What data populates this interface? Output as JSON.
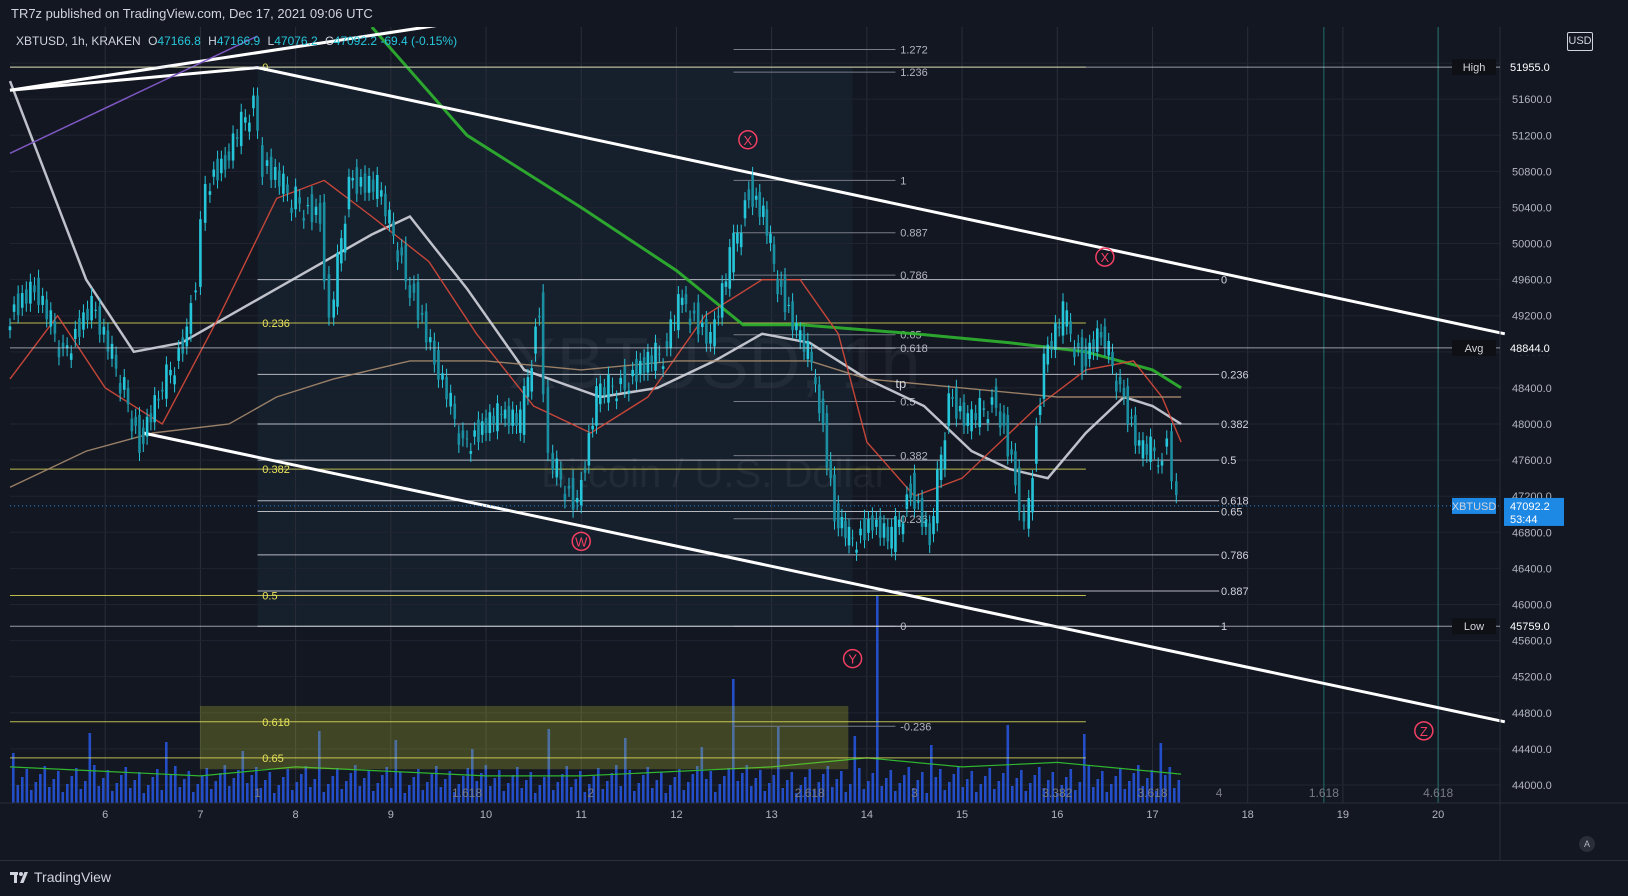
{
  "header": {
    "published_by": "TR7z published on TradingView.com, Dec 17, 2021 09:06 UTC"
  },
  "legend": {
    "symbol": "XBTUSD, 1h, KRAKEN",
    "o_label": "O",
    "o": "47166.8",
    "h_label": "H",
    "h": "47166.9",
    "l_label": "L",
    "l": "47076.2",
    "c_label": "C",
    "c": "47092.2",
    "change": "-69.4 (-0.15%)"
  },
  "currency_button": "USD",
  "footer": {
    "brand": "TradingView",
    "auto_label": "A"
  },
  "colors": {
    "background": "#131722",
    "candle": "#26c6da",
    "fib_yellow": "#e8e35a",
    "ma_green": "#2fb52f",
    "ma_white": "#d1d4dc",
    "ma_red": "#d84a3b",
    "ma_tan": "#a78b6e",
    "volume": "#2962ff",
    "wave_label": "#f23f63"
  },
  "chart_data": {
    "type": "candlestick",
    "symbol": "XBTUSD",
    "timeframe": "1h",
    "exchange": "KRAKEN",
    "watermark": {
      "symbol": "XBTUSD, 1h",
      "name": "Bitcoin / U.S. Dollar"
    },
    "x_ticks": [
      "6",
      "7",
      "8",
      "9",
      "10",
      "11",
      "12",
      "13",
      "14",
      "15",
      "16",
      "17",
      "18",
      "19",
      "20"
    ],
    "y_ticks": [
      "52000.0",
      "51600.0",
      "51200.0",
      "50800.0",
      "50400.0",
      "50000.0",
      "49600.0",
      "49200.0",
      "48800.0",
      "48400.0",
      "48000.0",
      "47600.0",
      "47200.0",
      "46800.0",
      "46400.0",
      "46000.0",
      "45600.0",
      "45200.0",
      "44800.0",
      "44400.0",
      "44000.0"
    ],
    "ylim": [
      43800,
      52400
    ],
    "price_labels": [
      {
        "label": "High",
        "value": "51955.0"
      },
      {
        "label": "Avg",
        "value": "48844.0"
      },
      {
        "label": "XBTUSD",
        "value": "47092.2",
        "sub": "53:44"
      },
      {
        "label": "Low",
        "value": "45759.0"
      }
    ],
    "price_path": [
      {
        "x": 5.0,
        "y": 49200
      },
      {
        "x": 5.3,
        "y": 49500
      },
      {
        "x": 5.6,
        "y": 48800
      },
      {
        "x": 5.9,
        "y": 49300
      },
      {
        "x": 6.2,
        "y": 48500
      },
      {
        "x": 6.4,
        "y": 47800
      },
      {
        "x": 6.6,
        "y": 48300
      },
      {
        "x": 6.9,
        "y": 49000
      },
      {
        "x": 7.0,
        "y": 49600
      },
      {
        "x": 7.1,
        "y": 50700
      },
      {
        "x": 7.3,
        "y": 50900
      },
      {
        "x": 7.6,
        "y": 51600
      },
      {
        "x": 7.7,
        "y": 50900
      },
      {
        "x": 8.0,
        "y": 50500
      },
      {
        "x": 8.3,
        "y": 50300
      },
      {
        "x": 8.4,
        "y": 49100
      },
      {
        "x": 8.6,
        "y": 50700
      },
      {
        "x": 8.9,
        "y": 50600
      },
      {
        "x": 9.2,
        "y": 49700
      },
      {
        "x": 9.5,
        "y": 48700
      },
      {
        "x": 9.8,
        "y": 47800
      },
      {
        "x": 10.2,
        "y": 48100
      },
      {
        "x": 10.4,
        "y": 48000
      },
      {
        "x": 10.6,
        "y": 49300
      },
      {
        "x": 10.7,
        "y": 47600
      },
      {
        "x": 11.0,
        "y": 47100
      },
      {
        "x": 11.2,
        "y": 48300
      },
      {
        "x": 11.5,
        "y": 48500
      },
      {
        "x": 11.9,
        "y": 48800
      },
      {
        "x": 12.1,
        "y": 49400
      },
      {
        "x": 12.4,
        "y": 48900
      },
      {
        "x": 12.6,
        "y": 49800
      },
      {
        "x": 12.8,
        "y": 50600
      },
      {
        "x": 12.95,
        "y": 50300
      },
      {
        "x": 13.1,
        "y": 49600
      },
      {
        "x": 13.3,
        "y": 49000
      },
      {
        "x": 13.5,
        "y": 48600
      },
      {
        "x": 13.7,
        "y": 47000
      },
      {
        "x": 13.85,
        "y": 46700
      },
      {
        "x": 14.1,
        "y": 46900
      },
      {
        "x": 14.3,
        "y": 46700
      },
      {
        "x": 14.5,
        "y": 47300
      },
      {
        "x": 14.7,
        "y": 46700
      },
      {
        "x": 14.9,
        "y": 48300
      },
      {
        "x": 15.1,
        "y": 48000
      },
      {
        "x": 15.4,
        "y": 48300
      },
      {
        "x": 15.6,
        "y": 47400
      },
      {
        "x": 15.7,
        "y": 46800
      },
      {
        "x": 15.9,
        "y": 48700
      },
      {
        "x": 16.1,
        "y": 49200
      },
      {
        "x": 16.3,
        "y": 48700
      },
      {
        "x": 16.5,
        "y": 49000
      },
      {
        "x": 16.7,
        "y": 48400
      },
      {
        "x": 16.9,
        "y": 47700
      },
      {
        "x": 17.1,
        "y": 47700
      },
      {
        "x": 17.2,
        "y": 47800
      },
      {
        "x": 17.3,
        "y": 47092
      }
    ],
    "moving_averages": [
      {
        "name": "green",
        "color": "#2fb52f",
        "points": [
          [
            8.8,
            52400
          ],
          [
            9.8,
            51200
          ],
          [
            11.0,
            50400
          ],
          [
            12.0,
            49700
          ],
          [
            12.7,
            49100
          ],
          [
            13.3,
            49100
          ],
          [
            14.5,
            49000
          ],
          [
            15.5,
            48900
          ],
          [
            16.3,
            48800
          ],
          [
            17.0,
            48600
          ],
          [
            17.3,
            48400
          ]
        ]
      },
      {
        "name": "white",
        "color": "#d1d4dc",
        "points": [
          [
            5.0,
            51800
          ],
          [
            5.8,
            49600
          ],
          [
            6.3,
            48800
          ],
          [
            6.8,
            48900
          ],
          [
            7.8,
            49500
          ],
          [
            8.8,
            50100
          ],
          [
            9.2,
            50300
          ],
          [
            9.8,
            49500
          ],
          [
            10.4,
            48600
          ],
          [
            11.2,
            48300
          ],
          [
            11.8,
            48400
          ],
          [
            12.4,
            48700
          ],
          [
            12.9,
            49000
          ],
          [
            13.4,
            48900
          ],
          [
            14.0,
            48500
          ],
          [
            14.6,
            48200
          ],
          [
            15.1,
            47700
          ],
          [
            15.5,
            47500
          ],
          [
            15.9,
            47400
          ],
          [
            16.3,
            47900
          ],
          [
            16.7,
            48300
          ],
          [
            17.0,
            48200
          ],
          [
            17.3,
            48000
          ]
        ]
      },
      {
        "name": "red",
        "color": "#d84a3b",
        "points": [
          [
            5.0,
            48500
          ],
          [
            5.5,
            49200
          ],
          [
            6.0,
            48400
          ],
          [
            6.6,
            48000
          ],
          [
            7.2,
            49200
          ],
          [
            7.8,
            50500
          ],
          [
            8.3,
            50700
          ],
          [
            8.8,
            50300
          ],
          [
            9.4,
            49800
          ],
          [
            9.9,
            49000
          ],
          [
            10.5,
            48200
          ],
          [
            11.1,
            47900
          ],
          [
            11.7,
            48300
          ],
          [
            12.3,
            49200
          ],
          [
            12.9,
            49600
          ],
          [
            13.3,
            49600
          ],
          [
            13.7,
            49000
          ],
          [
            14.0,
            47800
          ],
          [
            14.5,
            47200
          ],
          [
            15.0,
            47400
          ],
          [
            15.4,
            47800
          ],
          [
            15.8,
            48200
          ],
          [
            16.3,
            48600
          ],
          [
            16.8,
            48700
          ],
          [
            17.1,
            48300
          ],
          [
            17.3,
            47800
          ]
        ]
      },
      {
        "name": "tan-long",
        "color": "#a78b6e",
        "points": [
          [
            5.0,
            47300
          ],
          [
            5.8,
            47700
          ],
          [
            6.5,
            47900
          ],
          [
            7.3,
            48000
          ],
          [
            7.8,
            48300
          ],
          [
            8.4,
            48500
          ],
          [
            9.2,
            48700
          ],
          [
            10.0,
            48700
          ],
          [
            11.0,
            48600
          ],
          [
            12.0,
            48700
          ],
          [
            12.8,
            48700
          ],
          [
            13.4,
            48700
          ],
          [
            14.0,
            48500
          ],
          [
            15.0,
            48400
          ],
          [
            16.0,
            48300
          ],
          [
            17.3,
            48300
          ]
        ]
      }
    ],
    "channel_lines": [
      {
        "name": "upper-channel",
        "points": [
          [
            5.0,
            51700
          ],
          [
            7.6,
            51950
          ],
          [
            20.7,
            49000
          ]
        ]
      },
      {
        "name": "lower-channel",
        "points": [
          [
            6.4,
            47900
          ],
          [
            20.7,
            44700
          ]
        ]
      },
      {
        "name": "top-trendline",
        "points": [
          [
            5.0,
            51700
          ],
          [
            10.0,
            52500
          ]
        ]
      }
    ],
    "fib_levels": [
      {
        "label": "1.272",
        "value": 52150
      },
      {
        "label": "1.236",
        "value": 51900
      },
      {
        "label": "1",
        "value": 50700
      },
      {
        "label": "0.887",
        "value": 50120
      },
      {
        "label": "0.786",
        "value": 49650
      },
      {
        "label": "0.65",
        "value": 48990
      },
      {
        "label": "0.618",
        "value": 48840
      },
      {
        "label": "0.5",
        "value": 48250
      },
      {
        "label": "0.382",
        "value": 47650
      },
      {
        "label": "0.236",
        "value": 46950
      },
      {
        "label": "0",
        "value": 45759
      },
      {
        "label": "-0.236",
        "value": 44650
      }
    ],
    "fib_levels_right": [
      {
        "label": "0",
        "value": 49600
      },
      {
        "label": "0.236",
        "value": 48550
      },
      {
        "label": "0.382",
        "value": 48000
      },
      {
        "label": "0.5",
        "value": 47600
      },
      {
        "label": "0.618",
        "value": 47150
      },
      {
        "label": "0.65",
        "value": 47030
      },
      {
        "label": "0.786",
        "value": 46550
      },
      {
        "label": "0.887",
        "value": 46150
      },
      {
        "label": "1",
        "value": 45759
      }
    ],
    "fib_levels_left": [
      {
        "label": "0",
        "value": 51955
      },
      {
        "label": "0.236",
        "value": 49120
      },
      {
        "label": "0.382",
        "value": 47500
      },
      {
        "label": "0.5",
        "value": 46100
      },
      {
        "label": "0.618",
        "value": 44700
      },
      {
        "label": "0.65",
        "value": 44300
      }
    ],
    "time_fibs": [
      {
        "label": "1",
        "x": 7.6
      },
      {
        "label": "1.618",
        "x": 9.8
      },
      {
        "label": "2",
        "x": 11.1
      },
      {
        "label": "2.618",
        "x": 13.4
      },
      {
        "label": "3",
        "x": 14.5
      },
      {
        "label": "3.382",
        "x": 16.0
      },
      {
        "label": "3.618",
        "x": 17.0
      },
      {
        "label": "4",
        "x": 17.7
      },
      {
        "label": "1.618",
        "x": 18.8
      },
      {
        "label": "4.618",
        "x": 20.0
      }
    ],
    "wave_labels": [
      {
        "label": "W",
        "x": 11.0,
        "y": 46700
      },
      {
        "label": "X",
        "x": 12.75,
        "y": 51150
      },
      {
        "label": "Y",
        "x": 13.85,
        "y": 45400
      },
      {
        "label": "X",
        "x": 16.5,
        "y": 49850
      },
      {
        "label": "Z",
        "x": 19.85,
        "y": 44600
      }
    ],
    "annotations": [
      {
        "label": "tp",
        "x": 14.3,
        "y": 48400
      }
    ],
    "volume_note": "volume bars shown along bottom with green volume moving average"
  }
}
